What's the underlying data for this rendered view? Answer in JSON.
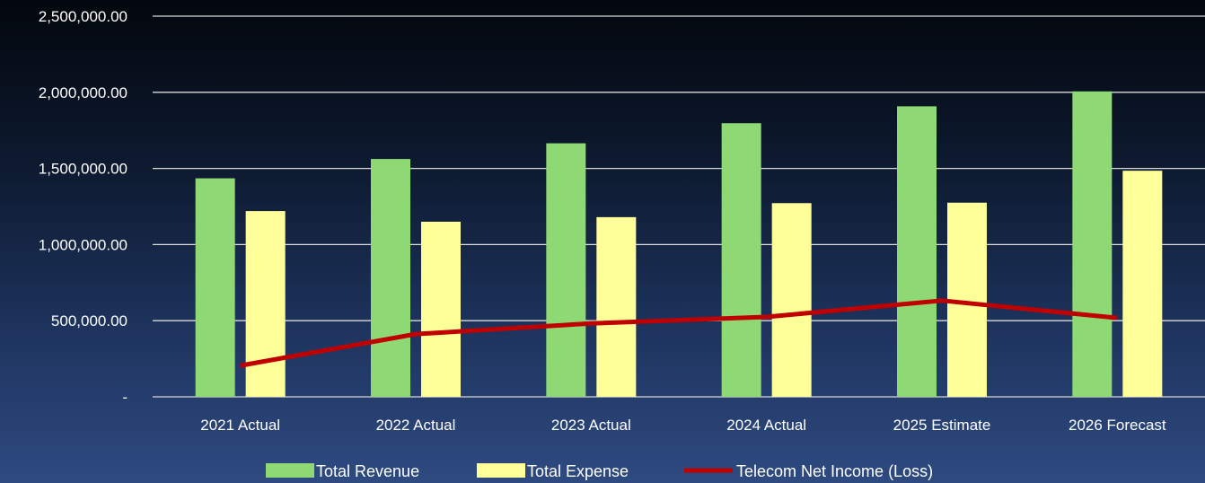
{
  "chart_data": {
    "type": "bar",
    "categories": [
      "2021 Actual",
      "2022 Actual",
      "2023 Actual",
      "2024 Actual",
      "2025 Estimate",
      "2026 Forecast"
    ],
    "series": [
      {
        "name": "Total Revenue",
        "type": "bar",
        "color": "#8ed973",
        "values": [
          1435000,
          1562000,
          1665000,
          1797000,
          1908000,
          2006000
        ]
      },
      {
        "name": "Total Expense",
        "type": "bar",
        "color": "#ffff99",
        "values": [
          1220000,
          1150000,
          1180000,
          1272000,
          1275000,
          1485000
        ]
      },
      {
        "name": "Telecom Net Income (Loss)",
        "type": "line",
        "color": "#c00000",
        "values": [
          205000,
          412000,
          482000,
          525000,
          632000,
          518000
        ]
      }
    ],
    "y_ticks": [
      "-",
      "500,000.00",
      "1,000,000.00",
      "1,500,000.00",
      "2,000,000.00",
      "2,500,000.00"
    ],
    "ylim": [
      0,
      2500000
    ],
    "grid": true,
    "legend_position": "bottom",
    "title": "",
    "xlabel": "",
    "ylabel": ""
  }
}
